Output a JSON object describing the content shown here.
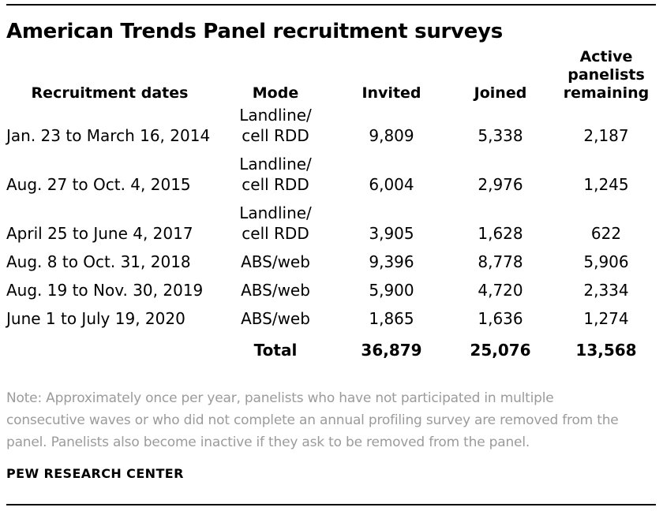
{
  "title": "American Trends Panel recruitment surveys",
  "table": {
    "columns": [
      "Recruitment dates",
      "Mode",
      "Invited",
      "Joined",
      "Active\npanelists\nremaining"
    ],
    "rows": [
      {
        "dates": "Jan. 23 to March 16, 2014",
        "mode": "Landline/\ncell RDD",
        "invited": "9,809",
        "joined": "5,338",
        "active": "2,187"
      },
      {
        "dates": "Aug. 27 to Oct. 4, 2015",
        "mode": "Landline/\ncell RDD",
        "invited": "6,004",
        "joined": "2,976",
        "active": "1,245"
      },
      {
        "dates": "April 25 to June 4, 2017",
        "mode": "Landline/\ncell RDD",
        "invited": "3,905",
        "joined": "1,628",
        "active": "622"
      },
      {
        "dates": "Aug. 8 to Oct. 31, 2018",
        "mode": "ABS/web",
        "invited": "9,396",
        "joined": "8,778",
        "active": "5,906"
      },
      {
        "dates": "Aug. 19 to Nov. 30, 2019",
        "mode": "ABS/web",
        "invited": "5,900",
        "joined": "4,720",
        "active": "2,334"
      },
      {
        "dates": "June 1 to July 19, 2020",
        "mode": "ABS/web",
        "invited": "1,865",
        "joined": "1,636",
        "active": "1,274"
      }
    ],
    "total": {
      "label": "Total",
      "invited": "36,879",
      "joined": "25,076",
      "active": "13,568"
    }
  },
  "note": "Note: Approximately once per year, panelists who have not participated in multiple\nconsecutive waves or who did not complete an annual profiling survey are removed from the\npanel. Panelists also become inactive if they ask to be removed from the panel.",
  "source": "PEW RESEARCH CENTER",
  "colors": {
    "text": "#000000",
    "note_gray": "#9b9b9b",
    "rule": "#010101",
    "background": "#ffffff"
  },
  "chart_data": {
    "type": "table",
    "title": "American Trends Panel recruitment surveys",
    "columns": [
      "Recruitment dates",
      "Mode",
      "Invited",
      "Joined",
      "Active panelists remaining"
    ],
    "rows": [
      [
        "Jan. 23 to March 16, 2014",
        "Landline/cell RDD",
        9809,
        5338,
        2187
      ],
      [
        "Aug. 27 to Oct. 4, 2015",
        "Landline/cell RDD",
        6004,
        2976,
        1245
      ],
      [
        "April 25 to June 4, 2017",
        "Landline/cell RDD",
        3905,
        1628,
        622
      ],
      [
        "Aug. 8 to Oct. 31, 2018",
        "ABS/web",
        9396,
        8778,
        5906
      ],
      [
        "Aug. 19 to Nov. 30, 2019",
        "ABS/web",
        5900,
        4720,
        2334
      ],
      [
        "June 1 to July 19, 2020",
        "ABS/web",
        1865,
        1636,
        1274
      ]
    ],
    "total_row": [
      "Total",
      36879,
      25076,
      13568
    ]
  }
}
